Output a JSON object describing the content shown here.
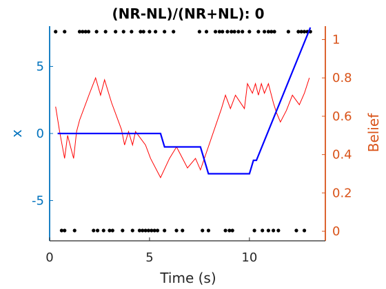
{
  "chart_data": {
    "type": "line",
    "title": "(NR-NL)/(NR+NL): 0",
    "xlabel": "Time (s)",
    "ylabel_left": "x",
    "ylabel_right": "Belief",
    "xlim": [
      0,
      13.8
    ],
    "ylim_left": [
      -8,
      8
    ],
    "ylim_right": [
      -0.05,
      1.07
    ],
    "xticks": [
      0,
      5,
      10
    ],
    "xtick_labels": [
      "0",
      "5",
      "10"
    ],
    "yticks_left": [
      -5,
      0,
      5
    ],
    "ytick_labels_left": [
      "-5",
      "0",
      "5"
    ],
    "yticks_right": [
      0,
      0.2,
      0.4,
      0.6,
      0.8,
      1
    ],
    "ytick_labels_right": [
      "0",
      "0.2",
      "0.4",
      "0.6",
      "0.8",
      "1"
    ],
    "colors": {
      "left_axis": "#0072BD",
      "right_axis": "#D95319",
      "x_series": "#0000FF",
      "belief_series": "#FF0000",
      "clicks": "#000000",
      "x_axis": "#262626"
    },
    "series": [
      {
        "axis": "left",
        "x": [
          0.4,
          5.55,
          5.75,
          7.55,
          7.95,
          10.0,
          10.2,
          10.35,
          13.05
        ],
        "y": [
          0,
          0,
          -1.0,
          -1.0,
          -3.0,
          -3.0,
          -2.0,
          -2.0,
          7.9
        ]
      },
      {
        "axis": "right",
        "x": [
          0.3,
          0.5,
          0.75,
          0.9,
          1.05,
          1.2,
          1.35,
          1.5,
          2.0,
          2.3,
          2.55,
          2.75,
          3.1,
          3.6,
          3.75,
          3.95,
          4.15,
          4.3,
          4.8,
          5.05,
          5.55,
          6.0,
          6.35,
          6.55,
          6.9,
          7.3,
          7.55,
          8.6,
          8.8,
          9.05,
          9.3,
          9.75,
          9.9,
          10.15,
          10.3,
          10.45,
          10.6,
          10.75,
          10.95,
          11.2,
          11.35,
          11.55,
          11.85,
          12.15,
          12.5,
          12.75,
          13.0
        ],
        "y": [
          0.65,
          0.52,
          0.38,
          0.5,
          0.44,
          0.38,
          0.52,
          0.58,
          0.72,
          0.8,
          0.71,
          0.79,
          0.67,
          0.53,
          0.45,
          0.52,
          0.45,
          0.52,
          0.45,
          0.38,
          0.28,
          0.38,
          0.44,
          0.4,
          0.33,
          0.38,
          0.32,
          0.64,
          0.71,
          0.64,
          0.71,
          0.64,
          0.77,
          0.72,
          0.77,
          0.71,
          0.77,
          0.72,
          0.77,
          0.67,
          0.62,
          0.57,
          0.63,
          0.71,
          0.66,
          0.72,
          0.8
        ]
      }
    ],
    "clicks_top": [
      0.3,
      0.75,
      1.5,
      1.65,
      1.8,
      1.95,
      2.35,
      2.8,
      3.3,
      3.7,
      4.1,
      4.55,
      4.7,
      5.0,
      5.3,
      5.75,
      6.2,
      7.5,
      7.85,
      8.3,
      8.5,
      8.65,
      8.9,
      9.1,
      9.25,
      9.45,
      9.65,
      10.0,
      10.45,
      10.75,
      10.95,
      11.1,
      11.25,
      11.95,
      12.45,
      12.6,
      12.75,
      12.9,
      13.05
    ],
    "clicks_bottom": [
      0.6,
      0.75,
      1.25,
      2.2,
      2.4,
      2.7,
      3.0,
      3.15,
      3.65,
      4.15,
      4.5,
      4.65,
      4.8,
      4.95,
      5.1,
      5.25,
      5.4,
      5.75,
      6.35,
      6.65,
      7.65,
      7.95,
      8.8,
      9.0,
      9.15,
      10.25,
      10.65,
      10.95,
      11.2,
      11.45,
      12.35,
      12.75
    ]
  }
}
